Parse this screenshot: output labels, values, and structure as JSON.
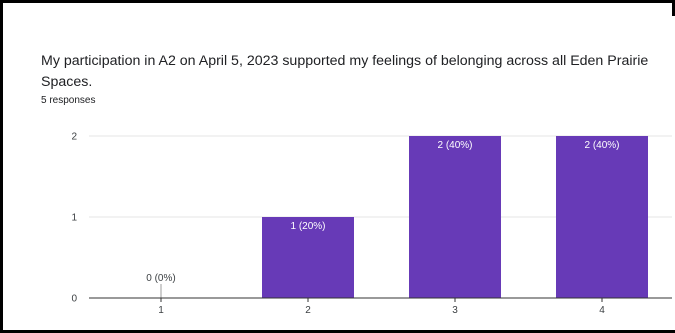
{
  "question": {
    "title": "My participation in A2 on April 5, 2023 supported my feelings of belonging across all Eden Prairie Spaces.",
    "response_count": "5 responses"
  },
  "colors": {
    "bar": "#673ab7",
    "bar_label_inside": "#ffffff",
    "bar_label_outside": "#3c4043",
    "axis_text": "#3c4043",
    "gridline": "#e6e6e6",
    "baseline": "#333333"
  },
  "chart_data": {
    "type": "bar",
    "title": "",
    "xlabel": "",
    "ylabel": "",
    "categories": [
      "1",
      "2",
      "3",
      "4"
    ],
    "values": [
      0,
      1,
      2,
      2
    ],
    "data_labels": [
      "0 (0%)",
      "1 (20%)",
      "2 (40%)",
      "2 (40%)"
    ],
    "yticks": [
      "0",
      "1",
      "2"
    ],
    "ylim": [
      0,
      2
    ],
    "grid": true,
    "legend": "none"
  }
}
